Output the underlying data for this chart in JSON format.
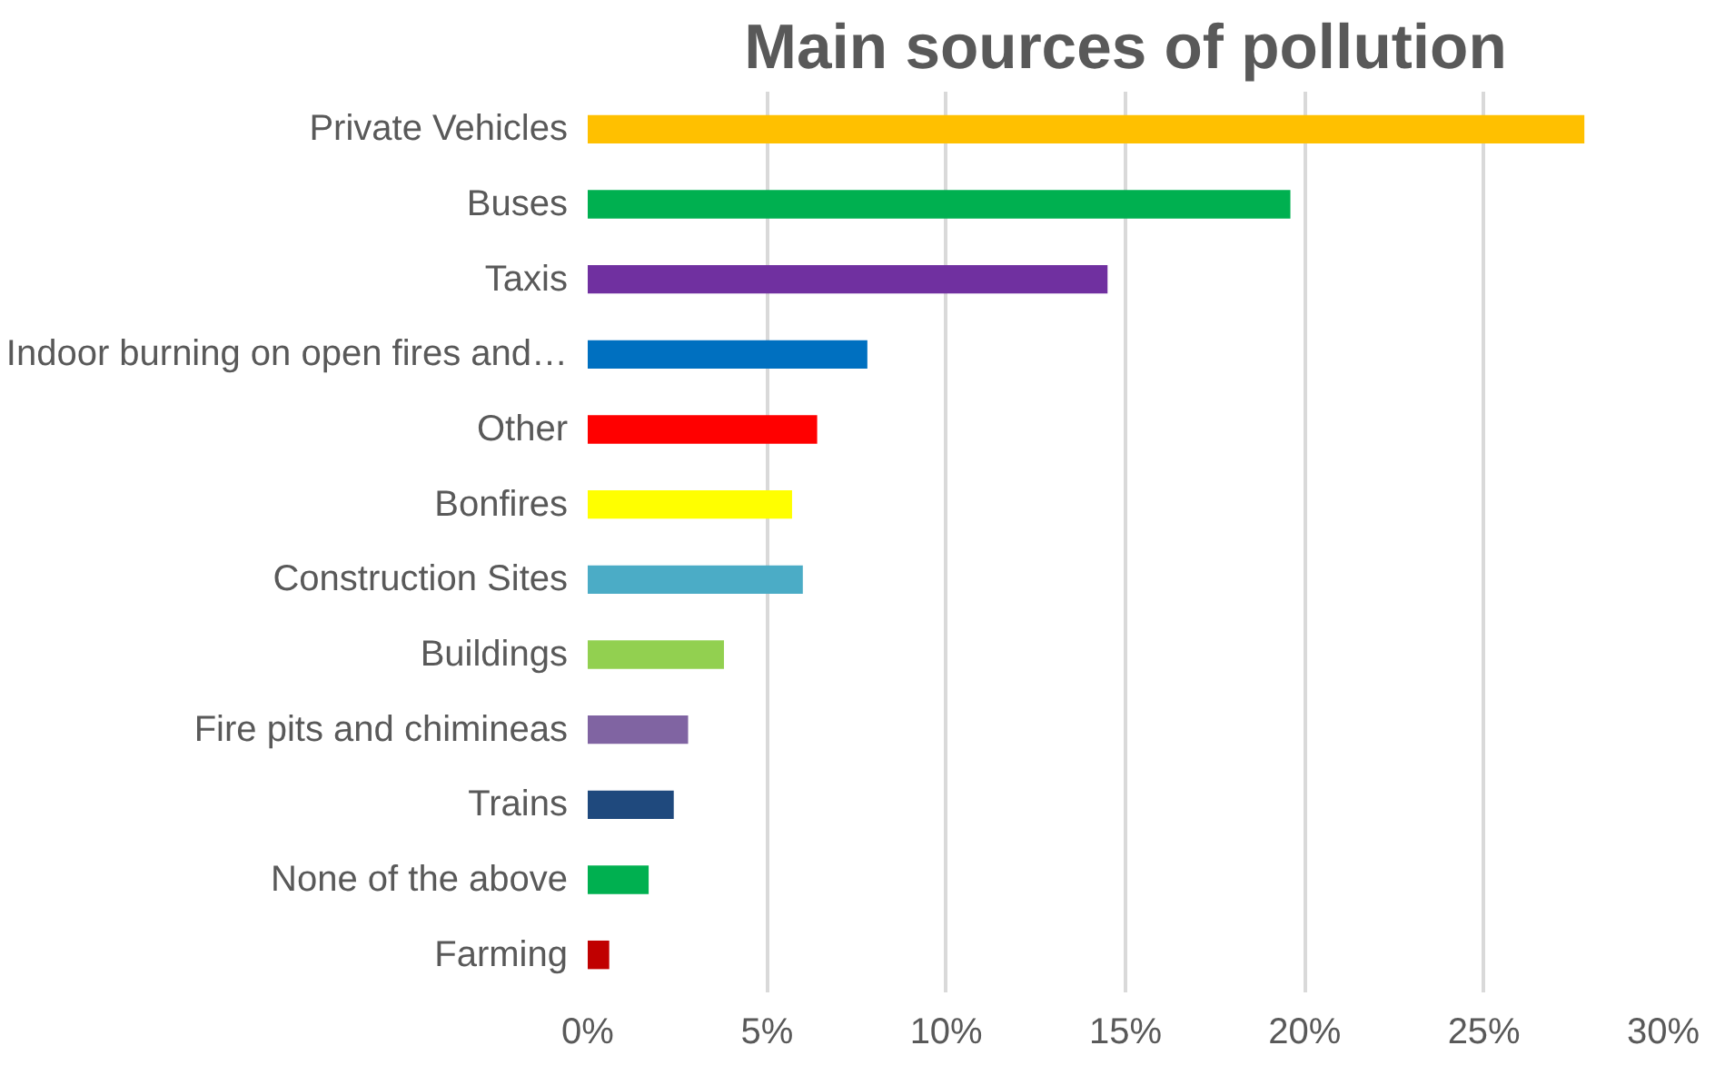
{
  "chart_data": {
    "type": "bar",
    "orientation": "horizontal",
    "title": "Main sources of pollution",
    "categories": [
      "Private Vehicles",
      "Buses",
      "Taxis",
      "Indoor burning on open fires and…",
      "Other",
      "Bonfires",
      "Construction Sites",
      "Buildings",
      "Fire pits and chimineas",
      "Trains",
      "None of the above",
      "Farming"
    ],
    "values": [
      27.8,
      19.6,
      14.5,
      7.8,
      6.4,
      5.7,
      6.0,
      3.8,
      2.8,
      2.4,
      1.7,
      0.6
    ],
    "colors": [
      "#ffc000",
      "#00b050",
      "#7030a0",
      "#0070c0",
      "#ff0000",
      "#ffff00",
      "#4bacc6",
      "#92d050",
      "#8064a2",
      "#1f497d",
      "#00b050",
      "#c00000"
    ],
    "xlim": [
      0,
      30
    ],
    "xticks": [
      {
        "value": 0,
        "label": "0%"
      },
      {
        "value": 5,
        "label": "5%"
      },
      {
        "value": 10,
        "label": "10%"
      },
      {
        "value": 15,
        "label": "15%"
      },
      {
        "value": 20,
        "label": "20%"
      },
      {
        "value": 25,
        "label": "25%"
      },
      {
        "value": 30,
        "label": "30%"
      }
    ],
    "grid": "x"
  }
}
